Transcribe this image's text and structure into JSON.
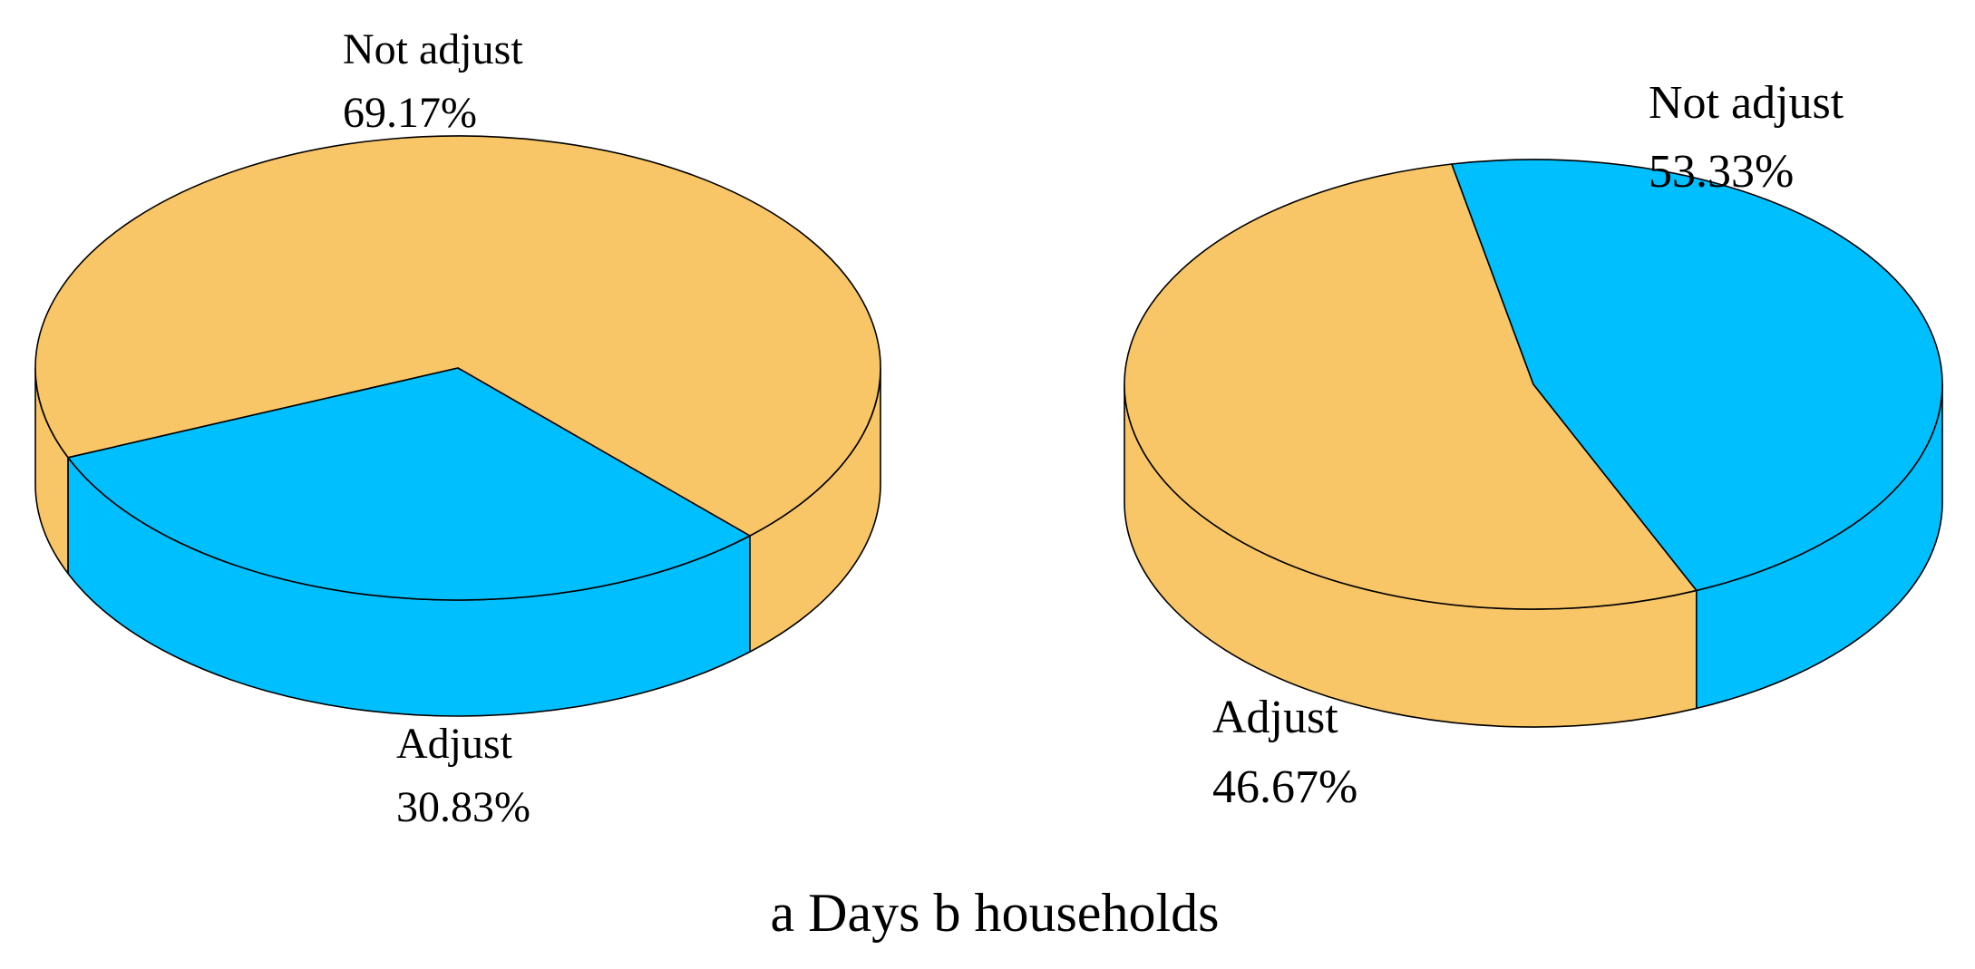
{
  "caption": "a Days b households",
  "chart_data": [
    {
      "type": "pie",
      "style": "3d",
      "categories": [
        "Not adjust",
        "Adjust"
      ],
      "values": [
        69.17,
        30.83
      ],
      "value_labels": [
        "69.17%",
        "30.83%"
      ],
      "colors": [
        "#F8C567",
        "#00BFFF"
      ]
    },
    {
      "type": "pie",
      "style": "3d",
      "categories": [
        "Not adjust",
        "Adjust"
      ],
      "values": [
        53.33,
        46.67
      ],
      "value_labels": [
        "53.33%",
        "46.67%"
      ],
      "colors": [
        "#F8C567",
        "#00BFFF"
      ]
    }
  ]
}
